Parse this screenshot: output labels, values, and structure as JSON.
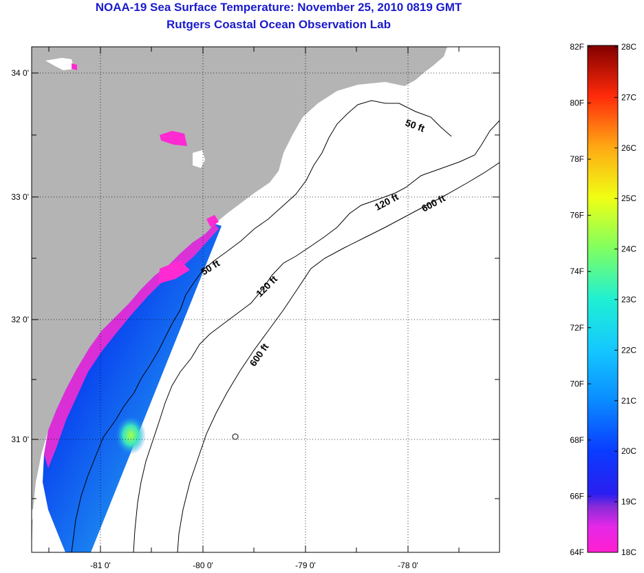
{
  "header": {
    "title": "NOAA-19 Sea Surface Temperature:  November 25, 2010 0819 GMT",
    "subtitle": "Rutgers Coastal Ocean Observation Lab"
  },
  "map": {
    "lat_ticks": [
      "34 0'",
      "33 0'",
      "32 0'",
      "31 0'"
    ],
    "lon_ticks": [
      "-81 0'",
      "-80 0'",
      "-79 0'",
      "-78 0'"
    ],
    "contours": [
      {
        "label": "50 ft",
        "id": "50a"
      },
      {
        "label": "50 ft",
        "id": "50b"
      },
      {
        "label": "120 ft",
        "id": "120a"
      },
      {
        "label": "120 ft",
        "id": "120b"
      },
      {
        "label": "600 ft",
        "id": "600a"
      },
      {
        "label": "600 ft",
        "id": "600b"
      }
    ],
    "colors": {
      "land": "#b4b4b4",
      "ocean": "#ffffff"
    }
  },
  "colorbar": {
    "fahrenheit": [
      "82F",
      "80F",
      "78F",
      "76F",
      "74F",
      "72F",
      "70F",
      "68F",
      "66F",
      "64F"
    ],
    "celsius": [
      "28C",
      "27C",
      "26C",
      "25C",
      "24C",
      "23C",
      "22C",
      "21C",
      "20C",
      "19C",
      "18C"
    ],
    "range_f": [
      64,
      82
    ],
    "range_c": [
      18,
      28
    ]
  }
}
